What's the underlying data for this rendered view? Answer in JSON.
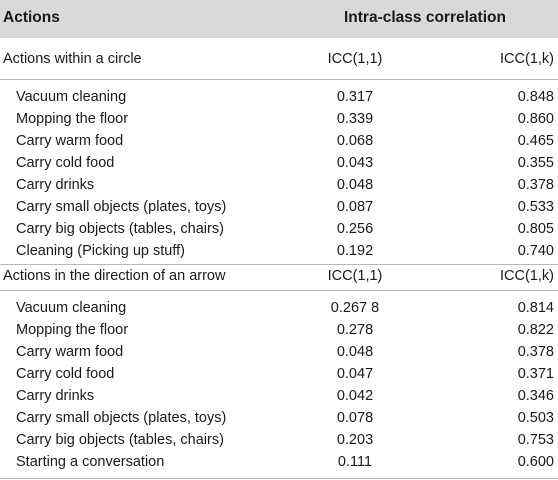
{
  "header": {
    "actions": "Actions",
    "icc": "Intra-class correlation"
  },
  "sections": [
    {
      "title": "Actions within a circle",
      "col1": "ICC(1,1)",
      "col2": "ICC(1,k)",
      "rows": [
        {
          "action": "Vacuum cleaning",
          "icc11": "0.317",
          "icc1k": "0.848"
        },
        {
          "action": "Mopping the floor",
          "icc11": "0.339",
          "icc1k": "0.860"
        },
        {
          "action": "Carry warm food",
          "icc11": "0.068",
          "icc1k": "0.465"
        },
        {
          "action": "Carry cold food",
          "icc11": "0.043",
          "icc1k": "0.355"
        },
        {
          "action": "Carry drinks",
          "icc11": "0.048",
          "icc1k": "0.378"
        },
        {
          "action": "Carry small objects (plates, toys)",
          "icc11": "0.087",
          "icc1k": "0.533"
        },
        {
          "action": "Carry big objects (tables, chairs)",
          "icc11": "0.256",
          "icc1k": "0.805"
        },
        {
          "action": "Cleaning (Picking up stuff)",
          "icc11": "0.192",
          "icc1k": "0.740"
        }
      ]
    },
    {
      "title": "Actions in the direction of an arrow",
      "col1": "ICC(1,1)",
      "col2": "ICC(1,k)",
      "rows": [
        {
          "action": "Vacuum cleaning",
          "icc11": "0.267 8",
          "icc1k": "0.814"
        },
        {
          "action": "Mopping the floor",
          "icc11": "0.278",
          "icc1k": "0.822"
        },
        {
          "action": "Carry warm food",
          "icc11": "0.048",
          "icc1k": "0.378"
        },
        {
          "action": "Carry cold food",
          "icc11": "0.047",
          "icc1k": "0.371"
        },
        {
          "action": "Carry drinks",
          "icc11": "0.042",
          "icc1k": "0.346"
        },
        {
          "action": "Carry small objects (plates, toys)",
          "icc11": "0.078",
          "icc1k": "0.503"
        },
        {
          "action": "Carry big objects (tables, chairs)",
          "icc11": "0.203",
          "icc1k": "0.753"
        },
        {
          "action": "Starting a conversation",
          "icc11": "0.111",
          "icc1k": "0.600"
        }
      ]
    }
  ]
}
